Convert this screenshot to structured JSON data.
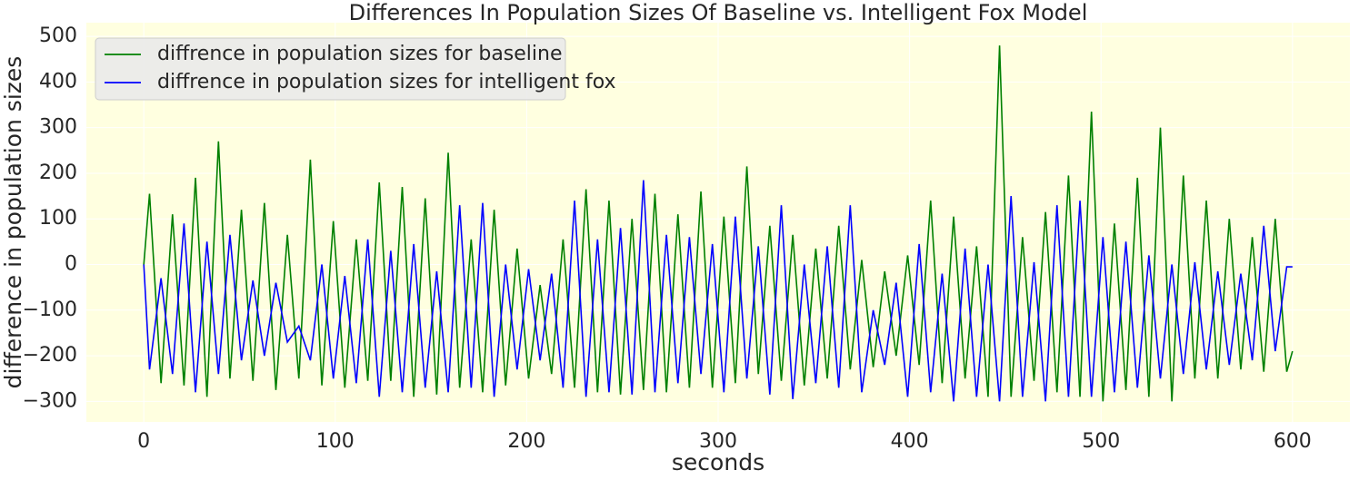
{
  "chart_data": {
    "type": "line",
    "title": "Differences In Population Sizes Of Baseline vs. Intelligent Fox Model",
    "xlabel": "seconds",
    "ylabel": "difference in population sizes",
    "x": [
      0,
      3,
      9,
      15,
      21,
      27,
      33,
      39,
      45,
      51,
      57,
      63,
      69,
      75,
      81,
      87,
      93,
      99,
      105,
      111,
      117,
      123,
      129,
      135,
      141,
      147,
      153,
      159,
      165,
      171,
      177,
      183,
      189,
      195,
      201,
      207,
      213,
      219,
      225,
      231,
      237,
      243,
      249,
      255,
      261,
      267,
      273,
      279,
      285,
      291,
      297,
      303,
      309,
      315,
      321,
      327,
      333,
      339,
      345,
      351,
      357,
      363,
      369,
      375,
      381,
      387,
      393,
      399,
      405,
      411,
      417,
      423,
      429,
      435,
      441,
      447,
      453,
      459,
      465,
      471,
      477,
      483,
      489,
      495,
      501,
      507,
      513,
      519,
      525,
      531,
      537,
      543,
      549,
      555,
      561,
      567,
      573,
      579,
      585,
      591,
      597,
      600
    ],
    "series": [
      {
        "name": "diffrence in population sizes for baseline",
        "color": "#008000",
        "values": [
          0,
          155,
          -260,
          110,
          -265,
          190,
          -290,
          270,
          -250,
          120,
          -255,
          135,
          -275,
          65,
          -250,
          230,
          -265,
          95,
          -270,
          55,
          -255,
          180,
          -255,
          170,
          -290,
          145,
          -285,
          245,
          -270,
          55,
          -280,
          120,
          -265,
          35,
          -250,
          -45,
          -240,
          55,
          -270,
          165,
          -280,
          140,
          -285,
          100,
          -275,
          155,
          -280,
          110,
          -270,
          160,
          -270,
          105,
          -260,
          215,
          -240,
          85,
          -255,
          65,
          -265,
          35,
          -250,
          85,
          -230,
          10,
          -225,
          -15,
          -200,
          20,
          -220,
          140,
          -260,
          105,
          -250,
          40,
          -290,
          480,
          -290,
          60,
          -255,
          115,
          -280,
          195,
          -290,
          335,
          -300,
          90,
          -275,
          190,
          -290,
          300,
          -300,
          195,
          -250,
          140,
          -250,
          100,
          -230,
          60,
          -235,
          100,
          -235,
          -190
        ]
      },
      {
        "name": "diffrence in population sizes for intelligent fox",
        "color": "#0000ff",
        "values": [
          0,
          -230,
          -30,
          -240,
          90,
          -280,
          50,
          -240,
          65,
          -210,
          -35,
          -200,
          -40,
          -170,
          -135,
          -210,
          0,
          -250,
          -25,
          -260,
          55,
          -290,
          30,
          -280,
          45,
          -270,
          -15,
          -280,
          130,
          -270,
          135,
          -290,
          0,
          -230,
          -10,
          -210,
          -20,
          -270,
          140,
          -290,
          55,
          -280,
          80,
          -285,
          185,
          -280,
          65,
          -260,
          60,
          -240,
          45,
          -280,
          105,
          -250,
          40,
          -285,
          130,
          -295,
          0,
          -260,
          40,
          -270,
          130,
          -280,
          -100,
          -220,
          -40,
          -290,
          45,
          -280,
          -20,
          -300,
          35,
          -290,
          0,
          -300,
          150,
          -290,
          5,
          -300,
          130,
          -290,
          140,
          -290,
          60,
          -280,
          50,
          -270,
          20,
          -250,
          0,
          -240,
          5,
          -230,
          -15,
          -220,
          -20,
          -210,
          85,
          -190,
          -5,
          -5
        ]
      }
    ],
    "xlim": [
      -30,
      630
    ],
    "ylim": [
      -345,
      530
    ],
    "xticks": [
      0,
      100,
      200,
      300,
      400,
      500,
      600
    ],
    "yticks": [
      {
        "value": -300,
        "label": "−300"
      },
      {
        "value": -200,
        "label": "−200"
      },
      {
        "value": -100,
        "label": "−100"
      },
      0,
      100,
      200,
      300,
      400,
      500
    ],
    "grid": true,
    "legend": "upper left",
    "background": "#ffffe0"
  }
}
